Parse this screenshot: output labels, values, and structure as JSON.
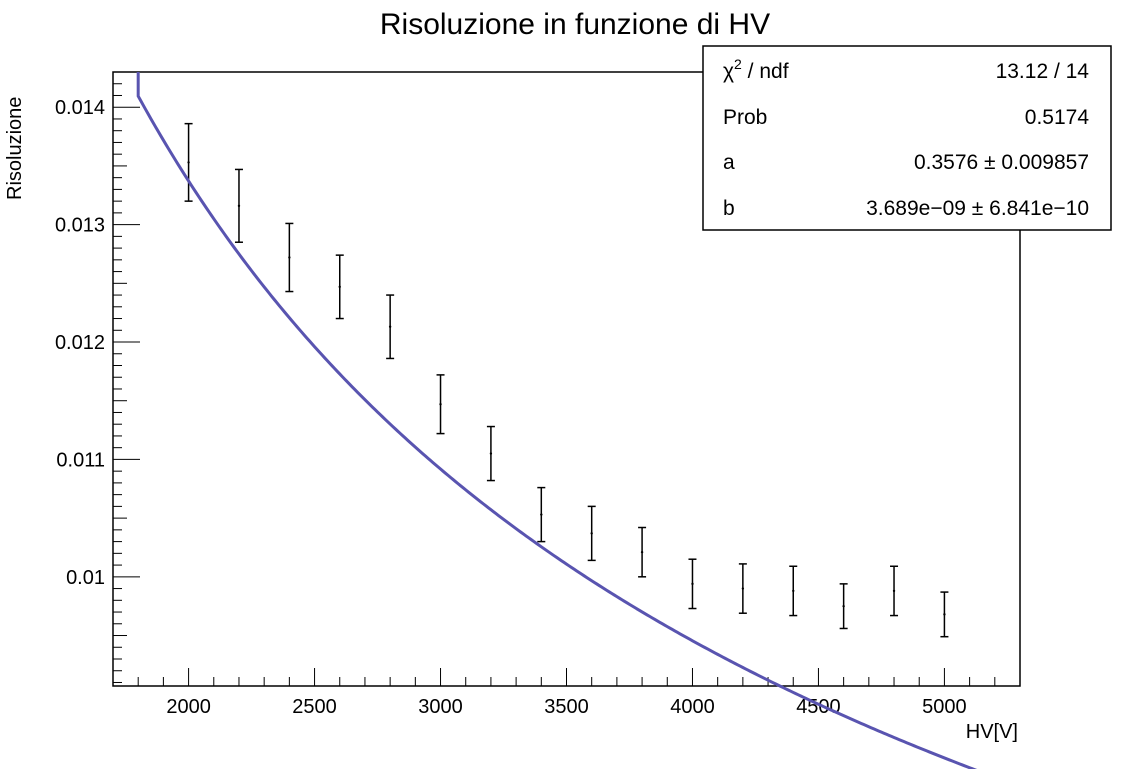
{
  "chart_data": {
    "type": "scatter",
    "title": "Risoluzione in funzione di HV",
    "xlabel": "HV[V]",
    "ylabel": "Risoluzione",
    "xlim": [
      1700,
      5300
    ],
    "ylim": [
      0.00907,
      0.0143
    ],
    "x_ticks": [
      2000,
      2500,
      3000,
      3500,
      4000,
      4500,
      5000
    ],
    "x_tick_labels": [
      "2000",
      "2500",
      "3000",
      "3500",
      "4000",
      "4500",
      "5000"
    ],
    "y_ticks": [
      0.01,
      0.011,
      0.012,
      0.013,
      0.014
    ],
    "y_tick_labels": [
      "0.01",
      "0.011",
      "0.012",
      "0.013",
      "0.014"
    ],
    "grid": false,
    "points": [
      {
        "x": 2000,
        "y": 0.01353,
        "err": 0.00033
      },
      {
        "x": 2200,
        "y": 0.01316,
        "err": 0.00031
      },
      {
        "x": 2400,
        "y": 0.01272,
        "err": 0.00029
      },
      {
        "x": 2600,
        "y": 0.01247,
        "err": 0.00027
      },
      {
        "x": 2800,
        "y": 0.01213,
        "err": 0.00027
      },
      {
        "x": 3000,
        "y": 0.01147,
        "err": 0.00025
      },
      {
        "x": 3200,
        "y": 0.01105,
        "err": 0.00023
      },
      {
        "x": 3400,
        "y": 0.01053,
        "err": 0.00023
      },
      {
        "x": 3600,
        "y": 0.01037,
        "err": 0.00023
      },
      {
        "x": 3800,
        "y": 0.01021,
        "err": 0.00021
      },
      {
        "x": 4000,
        "y": 0.00994,
        "err": 0.00021
      },
      {
        "x": 4200,
        "y": 0.0099,
        "err": 0.00021
      },
      {
        "x": 4400,
        "y": 0.00988,
        "err": 0.00021
      },
      {
        "x": 4600,
        "y": 0.00975,
        "err": 0.00019
      },
      {
        "x": 4800,
        "y": 0.00988,
        "err": 0.00021
      },
      {
        "x": 5000,
        "y": 0.00968,
        "err": 0.00019
      }
    ],
    "fit": {
      "name": "fit",
      "color": "#5954b0",
      "a": 0.3576,
      "b": 3.689e-09,
      "x_range": [
        1800,
        5280
      ]
    },
    "stats_box": {
      "placement": "top-right",
      "rows": [
        {
          "label": "χ",
          "label_sup": "2",
          "label_rest": " / ndf",
          "value": "13.12 / 14"
        },
        {
          "label": "Prob",
          "label_sup": "",
          "label_rest": "",
          "value": "0.5174"
        },
        {
          "label": "a",
          "label_sup": "",
          "label_rest": "",
          "value": "0.3576 ± 0.009857"
        },
        {
          "label": "b",
          "label_sup": "",
          "label_rest": "",
          "value": "3.689e−09 ± 6.841e−10"
        }
      ]
    }
  }
}
